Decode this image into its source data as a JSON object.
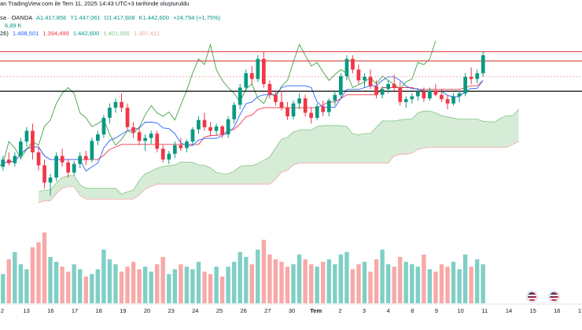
{
  "header": {
    "line1": {
      "prefix": "an TradingView.com ile Tem 11, 2025 14:43 UTC+3 tarihinde oluşturuldu"
    },
    "line2": {
      "symbol": "sa · OANDA",
      "open": "A1.417,856",
      "high": "Y1.447,061",
      "low": "D1.417,608",
      "close": "K1.442,600",
      "change": "+24,794 (+1,75%)"
    },
    "line3": {
      "volume": "6,89 K"
    },
    "line4": {
      "params": "26)",
      "tenkan": "1.408,501",
      "kijun": "1.394,499",
      "chikou": "1.442,600",
      "spanA": "1.401,500",
      "spanB": "1.387,421"
    }
  },
  "colors": {
    "up": "#089981",
    "down": "#f23645",
    "tenkan": "#2962ff",
    "kijun": "#f23645",
    "chikou": "#43a047",
    "cloud": "#c8e6c9",
    "vol_up": "#7fcfc6",
    "vol_down": "#f7a9a8",
    "support": "#000000",
    "resistance": "#d32f2f"
  },
  "icons": [
    "us-flag-icon",
    "us-flag-icon",
    "us-flag-icon"
  ],
  "chart_data": {
    "type": "candlestick",
    "x_ticks": [
      "2",
      "13",
      "16",
      "17",
      "18",
      "19",
      "20",
      "23",
      "24",
      "25",
      "26",
      "27",
      "30",
      "Tem",
      "2",
      "3",
      "4",
      "8",
      "9",
      "10",
      "11",
      "14",
      "15",
      "16",
      "17"
    ],
    "candles": [
      [
        1290,
        1305,
        1285,
        1300
      ],
      [
        1300,
        1310,
        1292,
        1295
      ],
      [
        1295,
        1310,
        1290,
        1305
      ],
      [
        1305,
        1330,
        1300,
        1325
      ],
      [
        1325,
        1345,
        1318,
        1340
      ],
      [
        1340,
        1350,
        1300,
        1310
      ],
      [
        1310,
        1318,
        1285,
        1292
      ],
      [
        1292,
        1300,
        1260,
        1268
      ],
      [
        1268,
        1280,
        1250,
        1275
      ],
      [
        1275,
        1310,
        1270,
        1305
      ],
      [
        1305,
        1315,
        1290,
        1296
      ],
      [
        1296,
        1300,
        1275,
        1282
      ],
      [
        1282,
        1298,
        1278,
        1294
      ],
      [
        1294,
        1310,
        1288,
        1305
      ],
      [
        1305,
        1312,
        1292,
        1300
      ],
      [
        1300,
        1330,
        1296,
        1326
      ],
      [
        1326,
        1340,
        1320,
        1335
      ],
      [
        1335,
        1362,
        1330,
        1358
      ],
      [
        1358,
        1378,
        1350,
        1372
      ],
      [
        1372,
        1385,
        1365,
        1380
      ],
      [
        1380,
        1392,
        1366,
        1372
      ],
      [
        1372,
        1378,
        1340,
        1345
      ],
      [
        1345,
        1352,
        1330,
        1338
      ],
      [
        1338,
        1345,
        1320,
        1326
      ],
      [
        1326,
        1335,
        1312,
        1330
      ],
      [
        1330,
        1340,
        1322,
        1336
      ],
      [
        1336,
        1340,
        1310,
        1315
      ],
      [
        1315,
        1320,
        1296,
        1300
      ],
      [
        1300,
        1312,
        1294,
        1308
      ],
      [
        1308,
        1325,
        1302,
        1320
      ],
      [
        1320,
        1330,
        1312,
        1316
      ],
      [
        1316,
        1328,
        1310,
        1325
      ],
      [
        1325,
        1345,
        1320,
        1342
      ],
      [
        1342,
        1360,
        1336,
        1355
      ],
      [
        1355,
        1365,
        1340,
        1345
      ],
      [
        1345,
        1352,
        1332,
        1340
      ],
      [
        1340,
        1350,
        1334,
        1346
      ],
      [
        1346,
        1348,
        1330,
        1335
      ],
      [
        1335,
        1360,
        1330,
        1356
      ],
      [
        1356,
        1380,
        1350,
        1376
      ],
      [
        1376,
        1405,
        1370,
        1400
      ],
      [
        1400,
        1425,
        1395,
        1420
      ],
      [
        1420,
        1430,
        1405,
        1412
      ],
      [
        1412,
        1445,
        1408,
        1440
      ],
      [
        1440,
        1450,
        1400,
        1405
      ],
      [
        1405,
        1410,
        1385,
        1390
      ],
      [
        1390,
        1396,
        1375,
        1380
      ],
      [
        1380,
        1395,
        1368,
        1372
      ],
      [
        1372,
        1380,
        1355,
        1360
      ],
      [
        1360,
        1382,
        1356,
        1378
      ],
      [
        1378,
        1392,
        1370,
        1385
      ],
      [
        1385,
        1390,
        1360,
        1365
      ],
      [
        1365,
        1372,
        1350,
        1358
      ],
      [
        1358,
        1378,
        1355,
        1374
      ],
      [
        1374,
        1382,
        1360,
        1366
      ],
      [
        1366,
        1385,
        1360,
        1382
      ],
      [
        1382,
        1395,
        1375,
        1390
      ],
      [
        1390,
        1420,
        1385,
        1416
      ],
      [
        1416,
        1445,
        1410,
        1440
      ],
      [
        1440,
        1445,
        1420,
        1425
      ],
      [
        1425,
        1432,
        1405,
        1410
      ],
      [
        1410,
        1420,
        1400,
        1415
      ],
      [
        1415,
        1425,
        1398,
        1402
      ],
      [
        1402,
        1410,
        1385,
        1390
      ],
      [
        1390,
        1402,
        1385,
        1398
      ],
      [
        1398,
        1410,
        1392,
        1405
      ],
      [
        1405,
        1418,
        1395,
        1400
      ],
      [
        1400,
        1408,
        1375,
        1380
      ],
      [
        1380,
        1388,
        1372,
        1384
      ],
      [
        1384,
        1392,
        1378,
        1388
      ],
      [
        1388,
        1398,
        1382,
        1394
      ],
      [
        1394,
        1400,
        1380,
        1385
      ],
      [
        1385,
        1400,
        1382,
        1396
      ],
      [
        1396,
        1405,
        1388,
        1390
      ],
      [
        1390,
        1398,
        1380,
        1384
      ],
      [
        1384,
        1390,
        1370,
        1378
      ],
      [
        1378,
        1392,
        1375,
        1388
      ],
      [
        1388,
        1396,
        1380,
        1392
      ],
      [
        1392,
        1420,
        1388,
        1415
      ],
      [
        1415,
        1428,
        1405,
        1412
      ],
      [
        1412,
        1425,
        1406,
        1420
      ],
      [
        1420,
        1450,
        1415,
        1445
      ]
    ],
    "volumes": [
      120,
      180,
      210,
      160,
      140,
      230,
      250,
      290,
      190,
      170,
      150,
      130,
      160,
      140,
      110,
      120,
      140,
      220,
      180,
      160,
      130,
      150,
      170,
      140,
      150,
      130,
      160,
      190,
      120,
      140,
      160,
      150,
      140,
      170,
      130,
      120,
      150,
      110,
      150,
      170,
      210,
      190,
      160,
      220,
      260,
      200,
      180,
      170,
      150,
      160,
      200,
      180,
      160,
      150,
      170,
      180,
      160,
      200,
      210,
      140,
      160,
      170,
      130,
      180,
      220,
      160,
      150,
      190,
      170,
      160,
      150,
      200,
      140,
      130,
      160,
      150,
      170,
      140,
      200,
      150,
      180,
      160
    ],
    "vol_up": [
      true,
      false,
      true,
      true,
      true,
      false,
      false,
      false,
      true,
      true,
      false,
      false,
      true,
      true,
      false,
      true,
      true,
      true,
      true,
      true,
      false,
      false,
      false,
      false,
      true,
      true,
      false,
      false,
      true,
      true,
      false,
      true,
      true,
      true,
      false,
      false,
      true,
      false,
      true,
      true,
      true,
      true,
      false,
      true,
      false,
      false,
      false,
      false,
      false,
      true,
      true,
      false,
      false,
      true,
      false,
      true,
      true,
      true,
      true,
      false,
      false,
      true,
      false,
      false,
      true,
      true,
      false,
      false,
      true,
      true,
      true,
      false,
      true,
      false,
      false,
      false,
      true,
      true,
      true,
      false,
      true,
      true
    ],
    "ylim": [
      1240,
      1465
    ],
    "support_level": 1395,
    "resistance_levels": [
      1450,
      1437
    ],
    "dashed_level": 1415,
    "legend_placement": "top-left",
    "grid": false
  }
}
